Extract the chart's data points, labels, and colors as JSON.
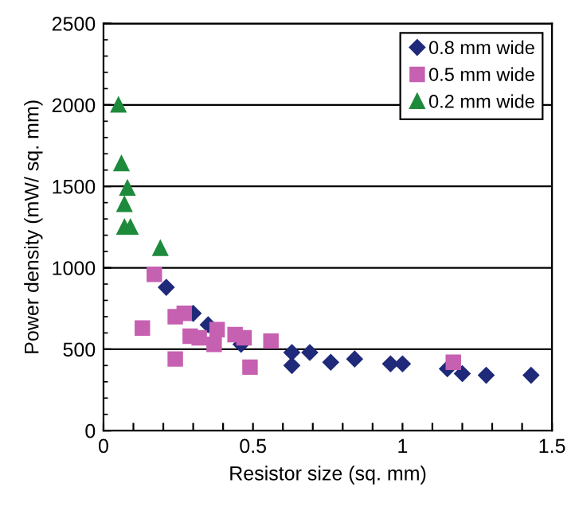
{
  "chart_data": {
    "type": "scatter",
    "xlabel": "Resistor size (sq. mm)",
    "ylabel": "Power density (mW/ sq. mm)",
    "series": [
      {
        "name": "0.8 mm wide",
        "color": "#1f2a7a",
        "marker": "diamond",
        "x": [
          0.21,
          0.3,
          0.35,
          0.46,
          0.63,
          0.63,
          0.69,
          0.76,
          0.84,
          0.96,
          1.0,
          1.15,
          1.2,
          1.28,
          1.43
        ],
        "values": [
          880,
          720,
          650,
          530,
          480,
          400,
          480,
          420,
          440,
          410,
          410,
          380,
          350,
          340,
          340
        ]
      },
      {
        "name": "0.5 mm wide",
        "color": "#c660b0",
        "marker": "square",
        "x": [
          0.17,
          0.13,
          0.24,
          0.27,
          0.24,
          0.29,
          0.32,
          0.37,
          0.38,
          0.44,
          0.47,
          0.49,
          0.56,
          1.17
        ],
        "values": [
          960,
          630,
          700,
          720,
          440,
          580,
          570,
          530,
          620,
          590,
          570,
          390,
          550,
          420
        ]
      },
      {
        "name": "0.2 mm wide",
        "color": "#1e8a3c",
        "marker": "triangle",
        "x": [
          0.05,
          0.06,
          0.08,
          0.07,
          0.07,
          0.09,
          0.19
        ],
        "values": [
          2000,
          1640,
          1490,
          1390,
          1250,
          1250,
          1120
        ]
      }
    ],
    "xlim": [
      0,
      1.5
    ],
    "xticks": [
      0,
      {
        "value": 0.1,
        "label": null
      },
      {
        "value": 0.2,
        "label": null
      },
      {
        "value": 0.3,
        "label": null
      },
      {
        "value": 0.4,
        "label": null
      },
      0.5,
      {
        "value": 0.6,
        "label": null
      },
      {
        "value": 0.7,
        "label": null
      },
      {
        "value": 0.8,
        "label": null
      },
      {
        "value": 0.9,
        "label": null
      },
      1,
      {
        "value": 1.1,
        "label": null
      },
      {
        "value": 1.2,
        "label": null
      },
      {
        "value": 1.3,
        "label": null
      },
      {
        "value": 1.4,
        "label": null
      },
      1.5
    ],
    "ylim": [
      0,
      2500
    ],
    "yticks": [
      0,
      500,
      1000,
      1500,
      2000,
      2500
    ],
    "grid": "y",
    "legend": "top right"
  }
}
